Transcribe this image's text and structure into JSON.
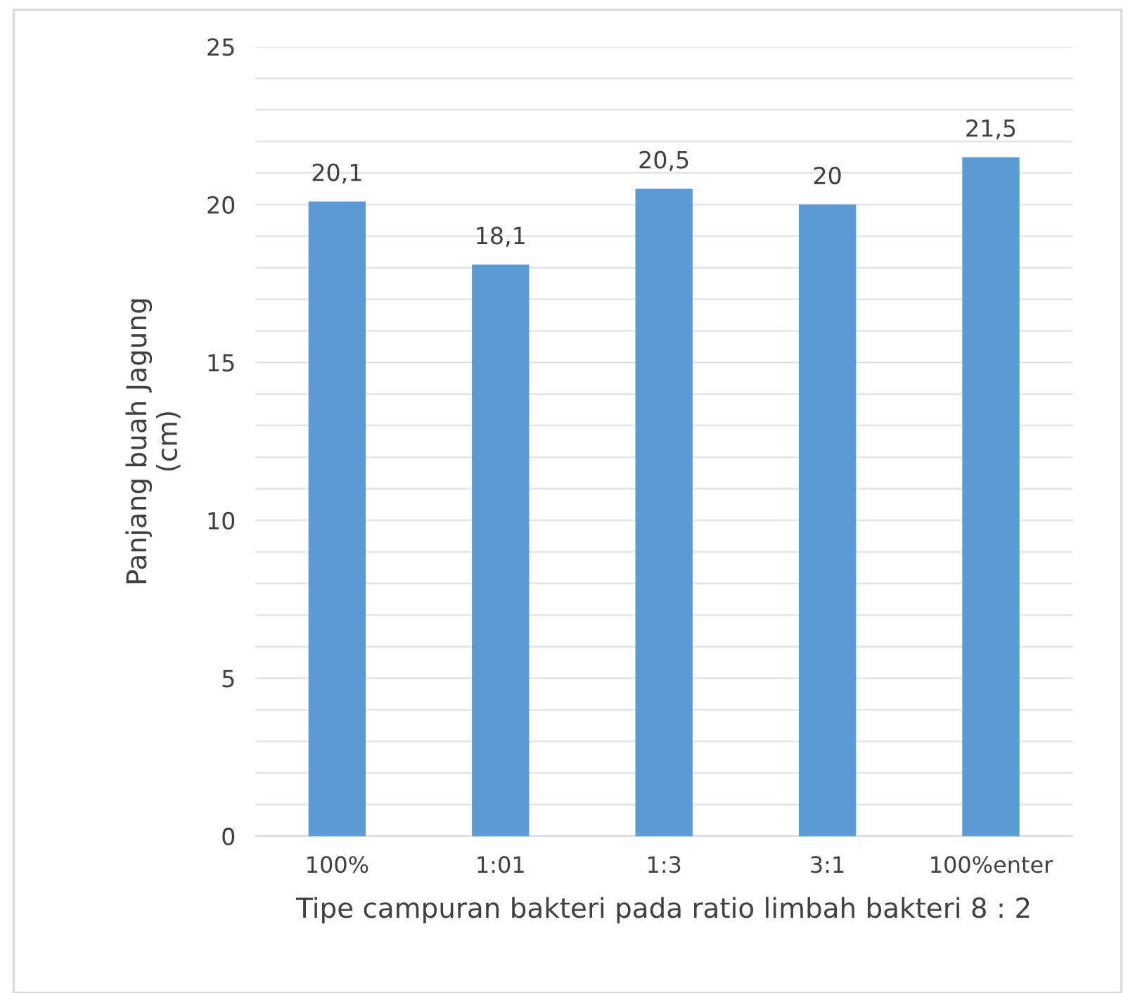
{
  "chart_data": {
    "type": "bar",
    "xlabel": "Tipe campuran bakteri pada ratio limbah bakteri 8 : 2",
    "ylabel": "Panjang buah Jagung\n(cm)",
    "categories": [
      "100%",
      "1:01",
      "1:3",
      "3:1",
      "100%enter"
    ],
    "values": [
      20.1,
      18.1,
      20.5,
      20,
      21.5
    ],
    "value_labels": [
      "20,1",
      "18,1",
      "20,5",
      "20",
      "21,5"
    ],
    "color": "#5b9bd5",
    "ylim": [
      0,
      25
    ],
    "yticks": [
      0,
      {
        "value": 1,
        "label": null
      },
      {
        "value": 2,
        "label": null
      },
      {
        "value": 3,
        "label": null
      },
      {
        "value": 4,
        "label": null
      },
      5,
      {
        "value": 6,
        "label": null
      },
      {
        "value": 7,
        "label": null
      },
      {
        "value": 8,
        "label": null
      },
      {
        "value": 9,
        "label": null
      },
      10,
      {
        "value": 11,
        "label": null
      },
      {
        "value": 12,
        "label": null
      },
      {
        "value": 13,
        "label": null
      },
      {
        "value": 14,
        "label": null
      },
      15,
      {
        "value": 16,
        "label": null
      },
      {
        "value": 17,
        "label": null
      },
      {
        "value": 18,
        "label": null
      },
      {
        "value": 19,
        "label": null
      },
      20,
      {
        "value": 21,
        "label": null
      },
      {
        "value": 22,
        "label": null
      },
      {
        "value": 23,
        "label": null
      },
      {
        "value": 24,
        "label": null
      },
      25
    ],
    "grid": "y",
    "legend": false
  }
}
